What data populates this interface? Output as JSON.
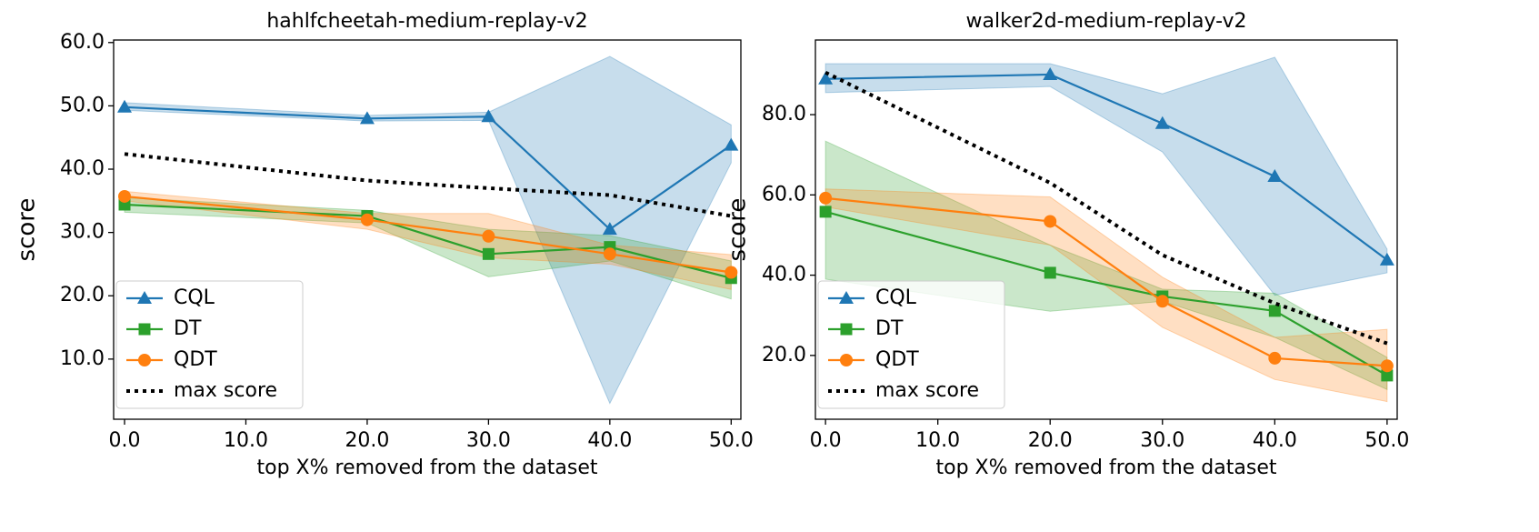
{
  "chart_data": [
    {
      "type": "line",
      "title": "hahlfcheetah-medium-replay-v2",
      "xlabel": "top X% removed from the dataset",
      "ylabel": "score",
      "x": [
        0,
        20,
        30,
        40,
        50
      ],
      "xlim": [
        -0.9,
        50.8
      ],
      "ylim": [
        0.5,
        60.4
      ],
      "xticks": [
        {
          "value": 0,
          "label": "0.0"
        },
        {
          "value": 10,
          "label": "10.0"
        },
        {
          "value": 20,
          "label": "20.0"
        },
        {
          "value": 30,
          "label": "30.0"
        },
        {
          "value": 40,
          "label": "40.0"
        },
        {
          "value": 50,
          "label": "50.0"
        }
      ],
      "yticks": [
        {
          "value": 10,
          "label": "10.0"
        },
        {
          "value": 20,
          "label": "20.0"
        },
        {
          "value": 30,
          "label": "30.0"
        },
        {
          "value": 40,
          "label": "40.0"
        },
        {
          "value": 50,
          "label": "50.0"
        },
        {
          "value": 60,
          "label": "60.0"
        }
      ],
      "legend": "lower left",
      "grid": false,
      "series": [
        {
          "name": "CQL",
          "color": "#1f77b4",
          "marker": "triangle",
          "values": [
            49.8,
            48.0,
            48.3,
            30.5,
            43.8
          ],
          "upper": [
            50.5,
            48.5,
            49.0,
            57.8,
            47.0
          ],
          "lower": [
            49.3,
            47.6,
            47.7,
            3.0,
            41.0
          ]
        },
        {
          "name": "DT",
          "color": "#2ca02c",
          "marker": "square",
          "values": [
            34.4,
            32.6,
            26.6,
            27.7,
            22.8
          ],
          "upper": [
            35.5,
            33.5,
            30.5,
            29.5,
            25.5
          ],
          "lower": [
            33.2,
            31.5,
            23.0,
            25.5,
            19.5
          ]
        },
        {
          "name": "QDT",
          "color": "#ff7f0e",
          "marker": "circle",
          "values": [
            35.7,
            32.0,
            29.4,
            26.6,
            23.7
          ],
          "upper": [
            36.5,
            33.0,
            33.0,
            28.0,
            26.5
          ],
          "lower": [
            35.0,
            30.5,
            26.0,
            25.0,
            21.0
          ]
        },
        {
          "name": "max score",
          "color": "#000000",
          "dash": "dotted",
          "values": [
            42.4,
            38.2,
            37.0,
            35.9,
            32.6
          ]
        }
      ]
    },
    {
      "type": "line",
      "title": "walker2d-medium-replay-v2",
      "xlabel": "top X% removed from the dataset",
      "ylabel": "score",
      "x": [
        0,
        20,
        30,
        40,
        50
      ],
      "xlim": [
        -0.9,
        50.9
      ],
      "ylim": [
        4.1,
        98.6
      ],
      "xticks": [
        {
          "value": 0,
          "label": "0.0"
        },
        {
          "value": 10,
          "label": "10.0"
        },
        {
          "value": 20,
          "label": "20.0"
        },
        {
          "value": 30,
          "label": "30.0"
        },
        {
          "value": 40,
          "label": "40.0"
        },
        {
          "value": 50,
          "label": "50.0"
        }
      ],
      "yticks": [
        {
          "value": 20,
          "label": "20.0"
        },
        {
          "value": 40,
          "label": "40.0"
        },
        {
          "value": 60,
          "label": "60.0"
        },
        {
          "value": 80,
          "label": "80.0"
        }
      ],
      "legend": "lower left",
      "grid": false,
      "series": [
        {
          "name": "CQL",
          "color": "#1f77b4",
          "marker": "triangle",
          "values": [
            88.9,
            90.0,
            77.8,
            64.6,
            43.8
          ],
          "upper": [
            92.7,
            92.7,
            85.2,
            94.3,
            46.5
          ],
          "lower": [
            85.5,
            87.0,
            70.7,
            35.0,
            40.6
          ]
        },
        {
          "name": "DT",
          "color": "#2ca02c",
          "marker": "square",
          "values": [
            55.8,
            40.6,
            34.7,
            31.1,
            15.0
          ],
          "upper": [
            73.4,
            47.5,
            36.5,
            35.5,
            19.5
          ],
          "lower": [
            39.0,
            31.0,
            33.5,
            24.5,
            11.5
          ]
        },
        {
          "name": "QDT",
          "color": "#ff7f0e",
          "marker": "circle",
          "values": [
            59.2,
            53.4,
            33.5,
            19.3,
            17.4
          ],
          "upper": [
            61.5,
            59.5,
            39.5,
            24.5,
            26.5
          ],
          "lower": [
            57.0,
            47.5,
            27.0,
            14.0,
            8.5
          ]
        },
        {
          "name": "max score",
          "color": "#000000",
          "dash": "dotted",
          "values": [
            90.5,
            63.0,
            45.0,
            33.0,
            23.0
          ]
        }
      ]
    }
  ]
}
